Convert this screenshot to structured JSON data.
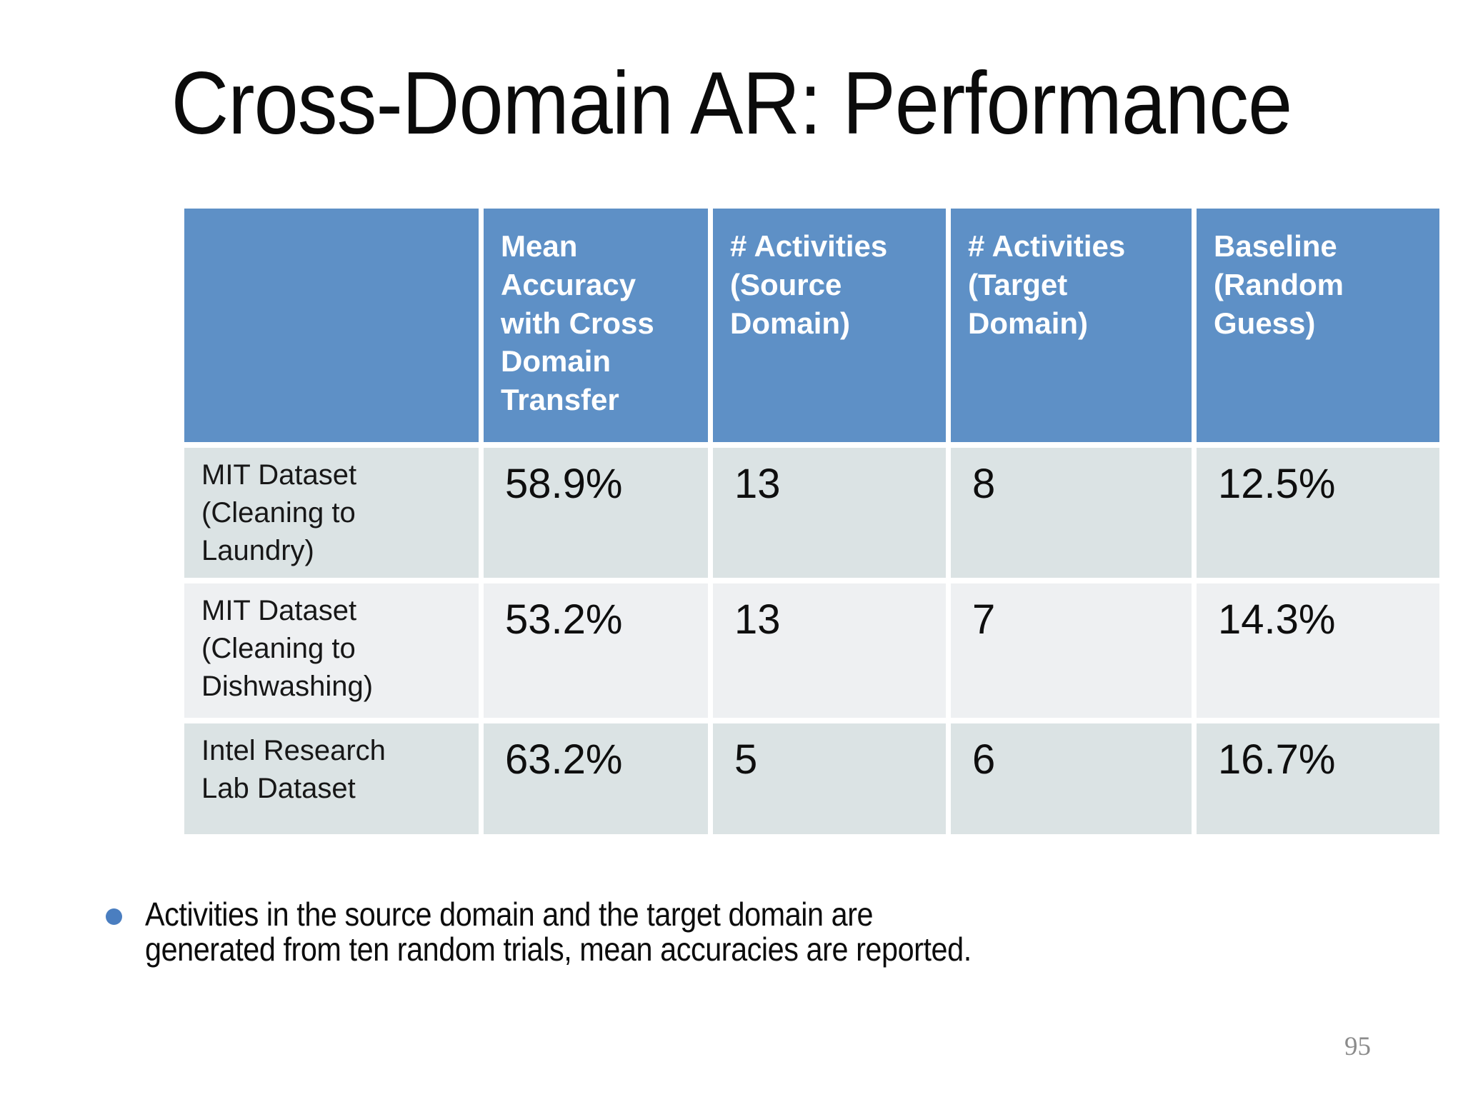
{
  "slide": {
    "title": "Cross-Domain AR: Performance",
    "page_number": "95"
  },
  "table": {
    "columns": [
      {
        "label": ""
      },
      {
        "label": "Mean\nAccuracy\nwith Cross\nDomain\nTransfer"
      },
      {
        "label": "# Activities\n(Source\nDomain)"
      },
      {
        "label": "# Activities\n(Target\nDomain)"
      },
      {
        "label": "Baseline\n(Random\nGuess)"
      }
    ],
    "rows": [
      {
        "label": "MIT Dataset\n(Cleaning to\nLaundry)",
        "mean_accuracy": "58.9%",
        "activities_source": "13",
        "activities_target": "8",
        "baseline": "12.5%"
      },
      {
        "label": "MIT Dataset\n(Cleaning to\nDishwashing)",
        "mean_accuracy": "53.2%",
        "activities_source": "13",
        "activities_target": "7",
        "baseline": "14.3%"
      },
      {
        "label": "Intel Research\nLab Dataset",
        "mean_accuracy": "63.2%",
        "activities_source": "5",
        "activities_target": "6",
        "baseline": "16.7%"
      }
    ]
  },
  "notes": {
    "bullet_text": "Activities in the source domain and the target domain are\ngenerated from ten random trials, mean accuracies are reported."
  },
  "colors": {
    "header_bg": "#5e90c6",
    "header_text": "#ffffff",
    "row_band": "#dbe3e4",
    "row_band_alt": "#eef0f2",
    "bullet_dot": "#4a7ec0",
    "body_text": "#111111",
    "page_number_text": "#8b8b8b"
  }
}
